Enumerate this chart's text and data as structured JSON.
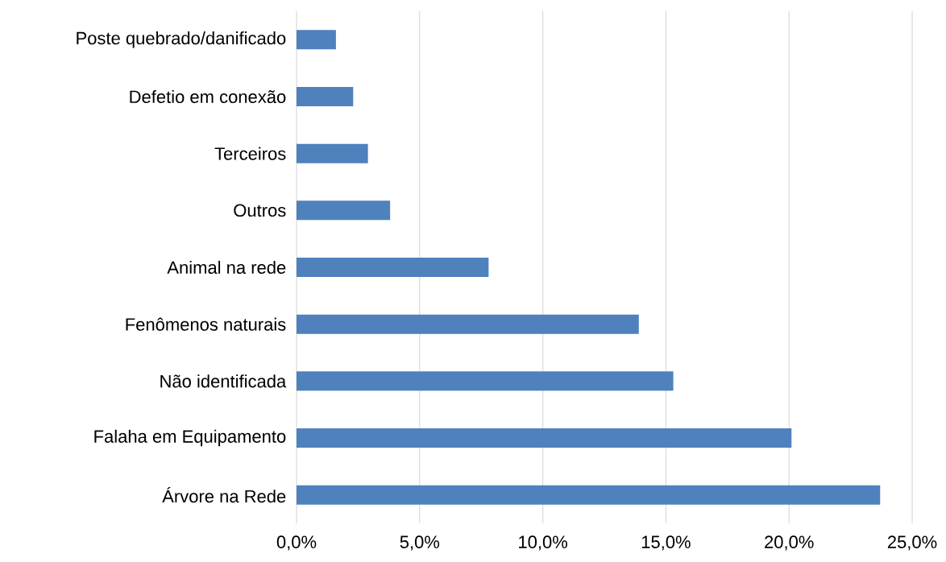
{
  "chart_data": {
    "type": "bar",
    "orientation": "horizontal",
    "categories": [
      "Poste quebrado/danificado",
      "Defetio em conexão",
      "Terceiros",
      "Outros",
      "Animal na rede",
      "Fenômenos naturais",
      "Não identificada",
      "Falaha em Equipamento",
      "Árvore na Rede"
    ],
    "values": [
      1.6,
      2.3,
      2.9,
      3.8,
      7.8,
      13.9,
      15.3,
      20.1,
      23.7
    ],
    "color": "#4f81bd",
    "xlim": [
      0,
      25
    ],
    "xticks": [
      {
        "value": 0,
        "label": "0,0%"
      },
      {
        "value": 5,
        "label": "5,0%"
      },
      {
        "value": 10,
        "label": "10,0%"
      },
      {
        "value": 15,
        "label": "15,0%"
      },
      {
        "value": 20,
        "label": "20,0%"
      },
      {
        "value": 25,
        "label": "25,0%"
      }
    ],
    "grid": "x"
  }
}
